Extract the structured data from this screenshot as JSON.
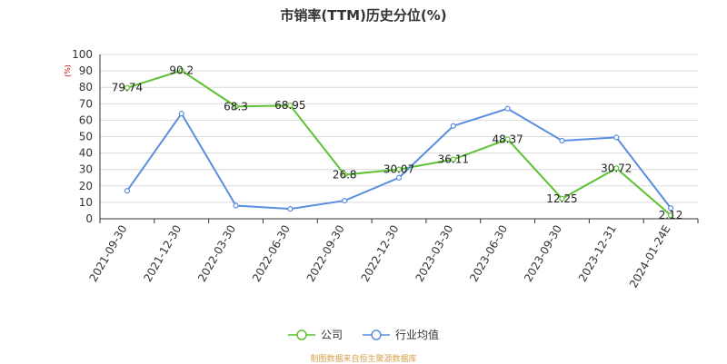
{
  "chart_data": {
    "type": "line",
    "title": "市销率(TTM)历史分位(%)",
    "ylabel": "(%)",
    "xlabel": "",
    "ylim": [
      0,
      100
    ],
    "yticks": [
      0,
      10,
      20,
      30,
      40,
      50,
      60,
      70,
      80,
      90,
      100
    ],
    "grid": true,
    "legend_position": "bottom-center",
    "categories": [
      "2021-09-30",
      "2021-12-30",
      "2022-03-30",
      "2022-06-30",
      "2022-09-30",
      "2022-12-30",
      "2023-03-30",
      "2023-06-30",
      "2023-09-30",
      "2023-12-31",
      "2024-01-24E"
    ],
    "series": [
      {
        "name": "公司",
        "color": "#5ec234",
        "values": [
          79.74,
          90.2,
          68.3,
          68.95,
          26.8,
          30.07,
          36.11,
          48.37,
          12.25,
          30.72,
          2.12
        ],
        "labels": [
          "79.74",
          "90.2",
          "68.3",
          "68.95",
          "26.8",
          "30.07",
          "36.11",
          "48.37",
          "12.25",
          "30.72",
          "2.12"
        ]
      },
      {
        "name": "行业均值",
        "color": "#5b8ee0",
        "values": [
          17,
          64,
          8,
          6,
          11,
          25,
          56.5,
          67,
          47.5,
          49.5,
          6.5
        ]
      }
    ]
  },
  "footer": {
    "source": "制图数据来自恒生聚源数据库"
  }
}
